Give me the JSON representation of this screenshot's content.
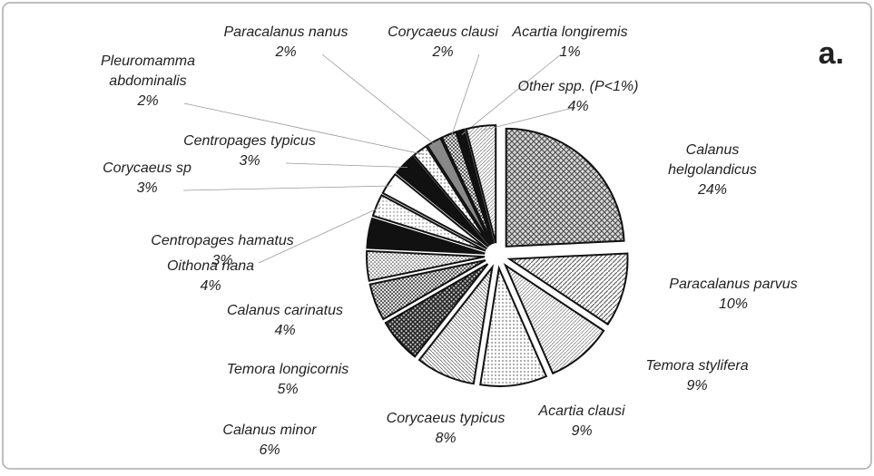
{
  "chart_data": {
    "type": "pie",
    "panel_label": "a.",
    "categories": [
      "Calanus helgolandicus",
      "Paracalanus parvus",
      "Temora stylifera",
      "Acartia clausi",
      "Corycaeus typicus",
      "Calanus minor",
      "Temora longicornis",
      "Calanus carinatus",
      "Oithona nana",
      "Centropages hamatus",
      "Corycaeus sp",
      "Centropages typicus",
      "Pleuromamma abdominalis",
      "Paracalanus nanus",
      "Corycaeus clausi",
      "Acartia longiremis",
      "Other spp. (P<1%)"
    ],
    "values": [
      24,
      10,
      9,
      9,
      8,
      6,
      5,
      4,
      4,
      3,
      3,
      3,
      2,
      2,
      2,
      1,
      4
    ],
    "value_labels": [
      "24%",
      "10%",
      "9%",
      "9%",
      "8%",
      "6%",
      "5%",
      "4%",
      "4%",
      "3%",
      "3%",
      "3%",
      "2%",
      "2%",
      "2%",
      "1%",
      "4%"
    ]
  }
}
